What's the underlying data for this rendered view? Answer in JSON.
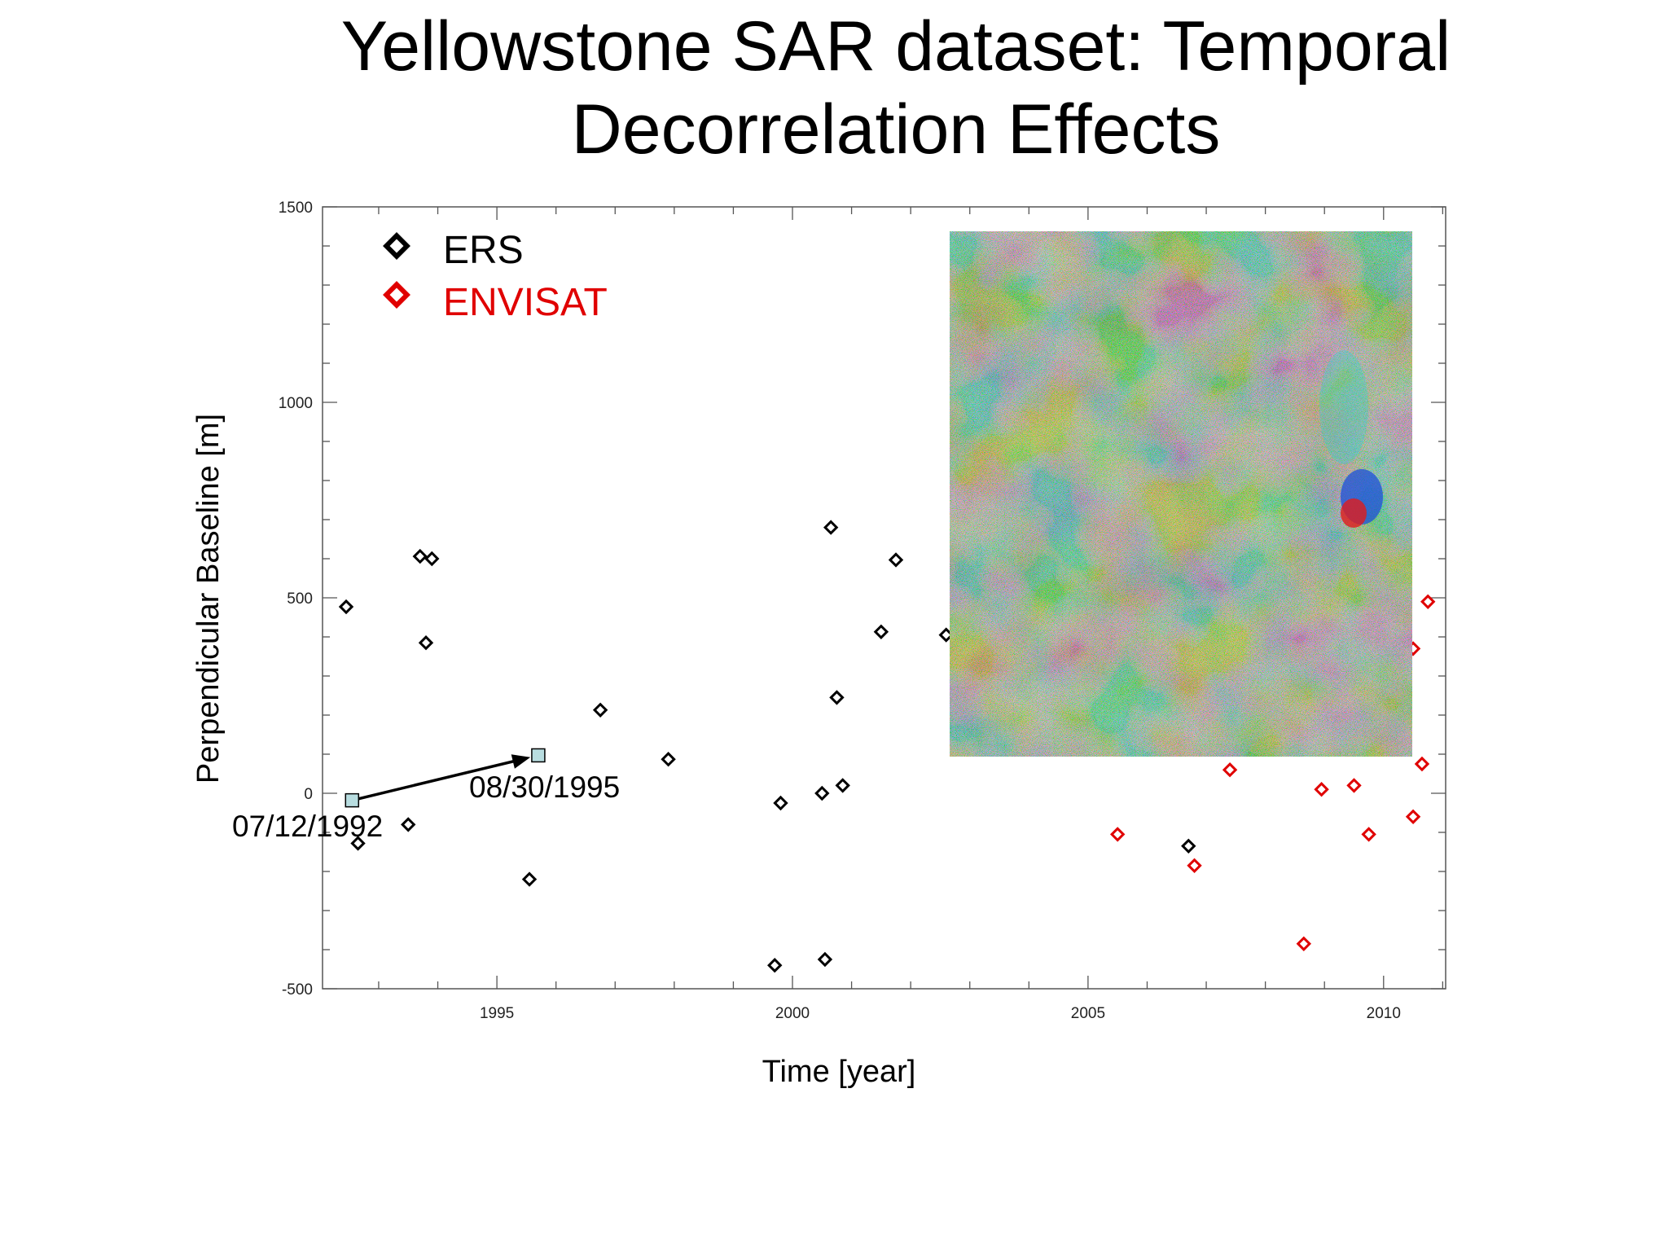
{
  "slide": {
    "title": "Yellowstone SAR dataset: Temporal\nDecorrelation Effects"
  },
  "colors": {
    "ers": "#000000",
    "envisat": "#e00000",
    "marker_fill": "#b8dde0"
  },
  "inset": {
    "name": "interferogram-image",
    "palette": [
      "#6aa84f",
      "#8fbf3f",
      "#c8b23a",
      "#d98a2b",
      "#b5402f",
      "#7a3a6a",
      "#3e6fb5",
      "#3aa7c9",
      "#58b86a",
      "#a6c24a"
    ]
  },
  "chart_data": {
    "type": "scatter",
    "title": "",
    "xlabel": "Time [year]",
    "ylabel": "Perpendicular Baseline [m]",
    "xlim": [
      1992.05,
      2011.05
    ],
    "ylim": [
      -500,
      1500
    ],
    "xticks": [
      1995,
      2000,
      2005,
      2010
    ],
    "yticks": [
      -500,
      0,
      500,
      1000,
      1500
    ],
    "legend_position": "top-left",
    "series": [
      {
        "name": "ERS",
        "color": "#000000",
        "points": [
          [
            1992.45,
            477
          ],
          [
            1992.65,
            -128
          ],
          [
            1993.5,
            -80
          ],
          [
            1993.7,
            606
          ],
          [
            1993.9,
            600
          ],
          [
            1993.8,
            385
          ],
          [
            1995.55,
            -220
          ],
          [
            1996.75,
            213
          ],
          [
            1997.9,
            87
          ],
          [
            1999.7,
            -440
          ],
          [
            1999.8,
            -25
          ],
          [
            2000.5,
            0
          ],
          [
            2000.55,
            -425
          ],
          [
            2000.65,
            680
          ],
          [
            2000.75,
            245
          ],
          [
            2000.85,
            20
          ],
          [
            2001.5,
            413
          ],
          [
            2001.75,
            597
          ],
          [
            2002.6,
            405
          ],
          [
            2006.7,
            -135
          ]
        ]
      },
      {
        "name": "ENVISAT",
        "color": "#e00000",
        "points": [
          [
            2005.5,
            -105
          ],
          [
            2006.8,
            -185
          ],
          [
            2007.4,
            60
          ],
          [
            2008.65,
            -385
          ],
          [
            2008.95,
            10
          ],
          [
            2009.5,
            20
          ],
          [
            2009.75,
            -105
          ],
          [
            2010.5,
            -60
          ],
          [
            2010.65,
            75
          ],
          [
            2010.75,
            490
          ],
          [
            2010.5,
            370
          ]
        ]
      }
    ],
    "annotations": [
      {
        "label": "07/12/1992",
        "x": 1992.55,
        "y": -18
      },
      {
        "label": "08/30/1995",
        "x": 1995.7,
        "y": 97
      }
    ]
  }
}
